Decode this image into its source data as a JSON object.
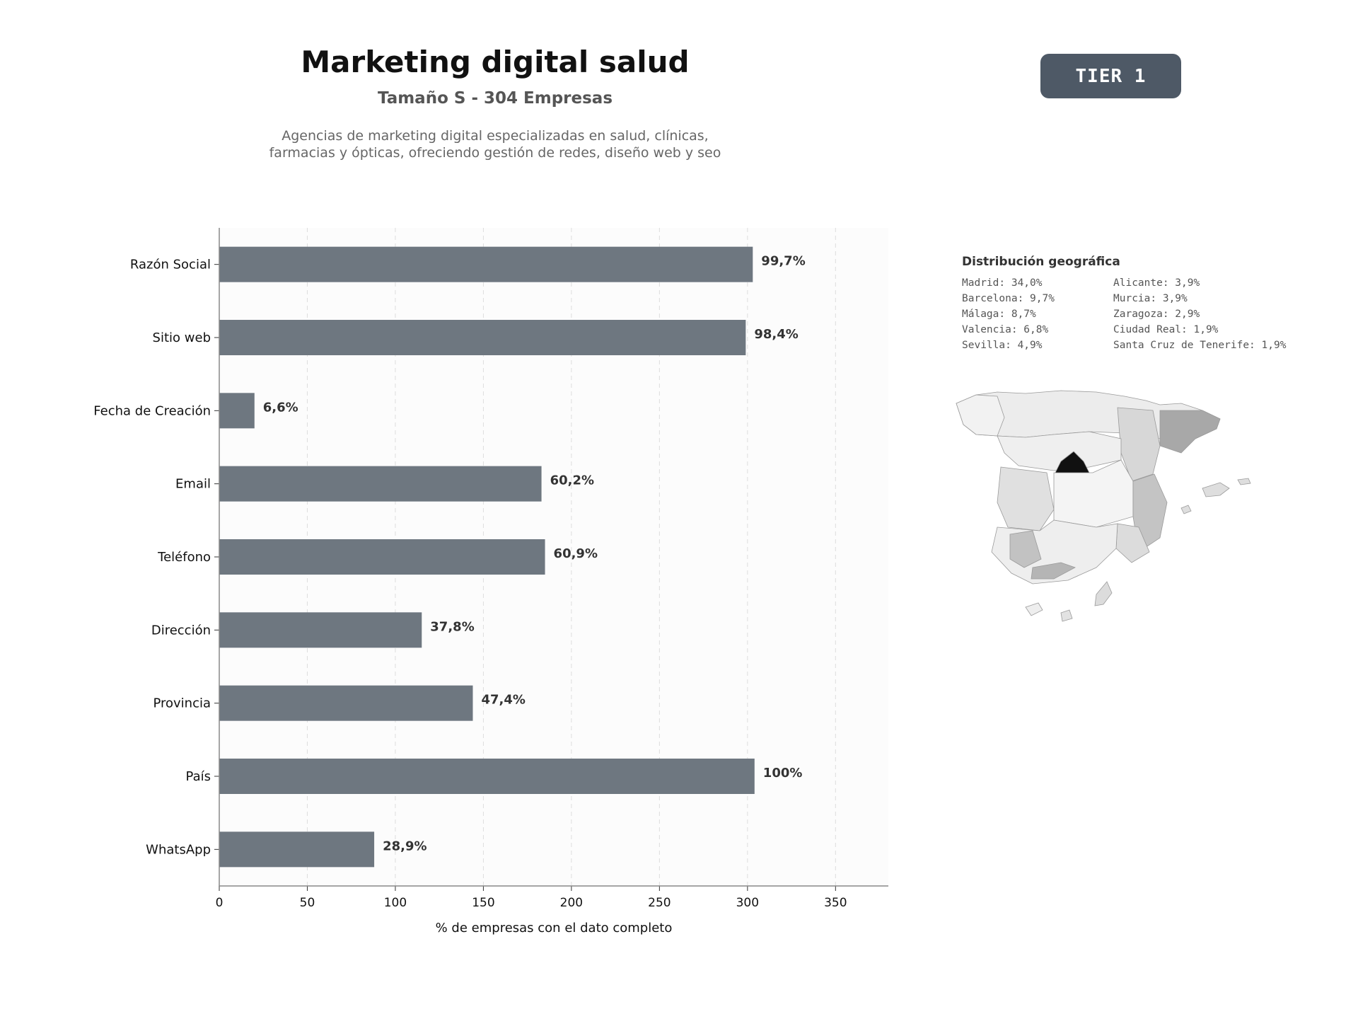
{
  "header": {
    "title": "Marketing digital salud",
    "subtitle": "Tamaño S - 304 Empresas",
    "description": "Agencias de marketing digital especializadas en salud, clínicas,\nfarmacias y ópticas, ofreciendo gestión de redes, diseño web y seo"
  },
  "badge": {
    "label": "TIER 1",
    "color": "#4e5966"
  },
  "chart_data": {
    "type": "bar",
    "orientation": "horizontal",
    "xlabel": "% de empresas con el dato completo",
    "ylabel": "",
    "xlim": [
      0,
      380
    ],
    "xticks": [
      0,
      50,
      100,
      150,
      200,
      250,
      300,
      350
    ],
    "grid": "vertical-dashed",
    "bar_color": "#6e7780",
    "categories": [
      "Razón Social",
      "Sitio web",
      "Fecha de Creación",
      "Email",
      "Teléfono",
      "Dirección",
      "Provincia",
      "País",
      "WhatsApp"
    ],
    "values": [
      303,
      299,
      20,
      183,
      185,
      115,
      144,
      304,
      88
    ],
    "value_labels": [
      "99,7%",
      "98,4%",
      "6,6%",
      "60,2%",
      "60,9%",
      "37,8%",
      "47,4%",
      "100%",
      "28,9%"
    ]
  },
  "geo": {
    "title": "Distribución geográfica",
    "left_column": [
      "Madrid: 34,0%",
      "Barcelona: 9,7%",
      "Málaga: 8,7%",
      "Valencia: 6,8%",
      "Sevilla: 4,9%"
    ],
    "right_column": [
      "Alicante: 3,9%",
      "Murcia: 3,9%",
      "Zaragoza: 2,9%",
      "Ciudad Real: 1,9%",
      "Santa Cruz de Tenerife: 1,9%"
    ]
  }
}
